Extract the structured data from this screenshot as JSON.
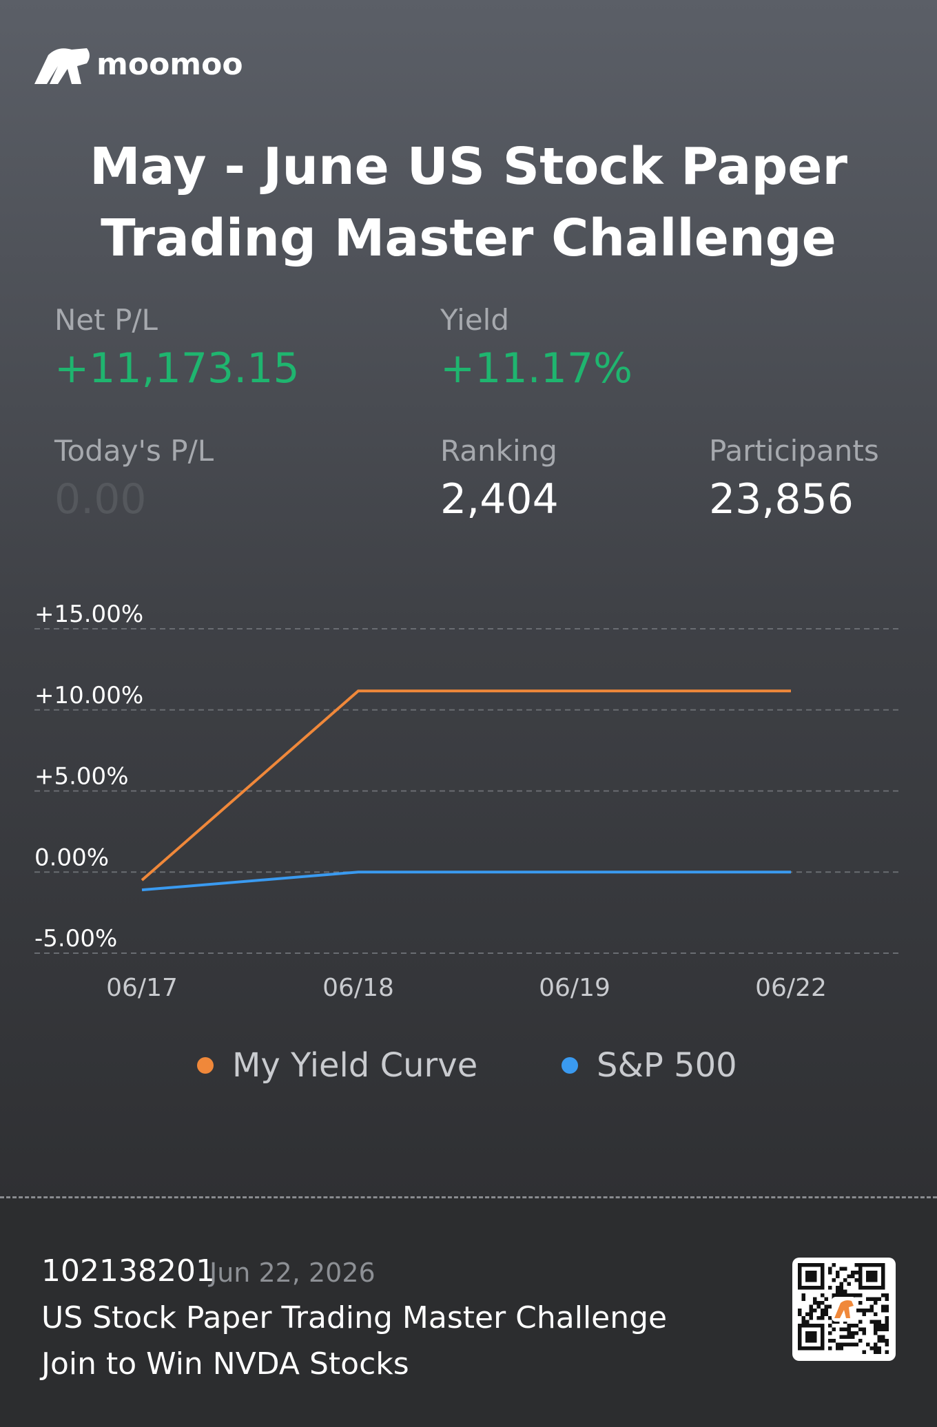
{
  "brand": "moomoo",
  "title": "May - June US Stock Paper Trading Master Challenge",
  "stats": [
    {
      "label": "Net P/L",
      "value": "+11,173.15"
    },
    {
      "label": "Yield",
      "value": "+11.17%"
    },
    {
      "label": "Today's P/L",
      "value": "0.00"
    },
    {
      "label": "Ranking",
      "value": "2,404"
    },
    {
      "label": "Participants",
      "value": "23,856"
    }
  ],
  "chart_data": {
    "type": "line",
    "categories": [
      "06/17",
      "06/18",
      "06/19",
      "06/22"
    ],
    "series": [
      {
        "name": "My Yield Curve",
        "color": "#f0883a",
        "values": [
          -0.5,
          11.17,
          11.17,
          11.17
        ]
      },
      {
        "name": "S&P 500",
        "color": "#3a9af0",
        "values": [
          -1.1,
          0,
          0,
          0
        ]
      }
    ],
    "ylim": [
      -5,
      15
    ],
    "yticks": [
      {
        "value": -5,
        "label": "-5.00%"
      },
      {
        "value": 0,
        "label": "0.00%"
      },
      {
        "value": 5,
        "label": "+5.00%"
      },
      {
        "value": 10,
        "label": "+10.00%"
      },
      {
        "value": 15,
        "label": "+15.00%"
      }
    ],
    "grid": true
  },
  "footer": {
    "id": "102138201",
    "date": "Jun 22, 2026",
    "line1": "US Stock Paper Trading Master Challenge",
    "line2": "Join to Win NVDA Stocks"
  }
}
